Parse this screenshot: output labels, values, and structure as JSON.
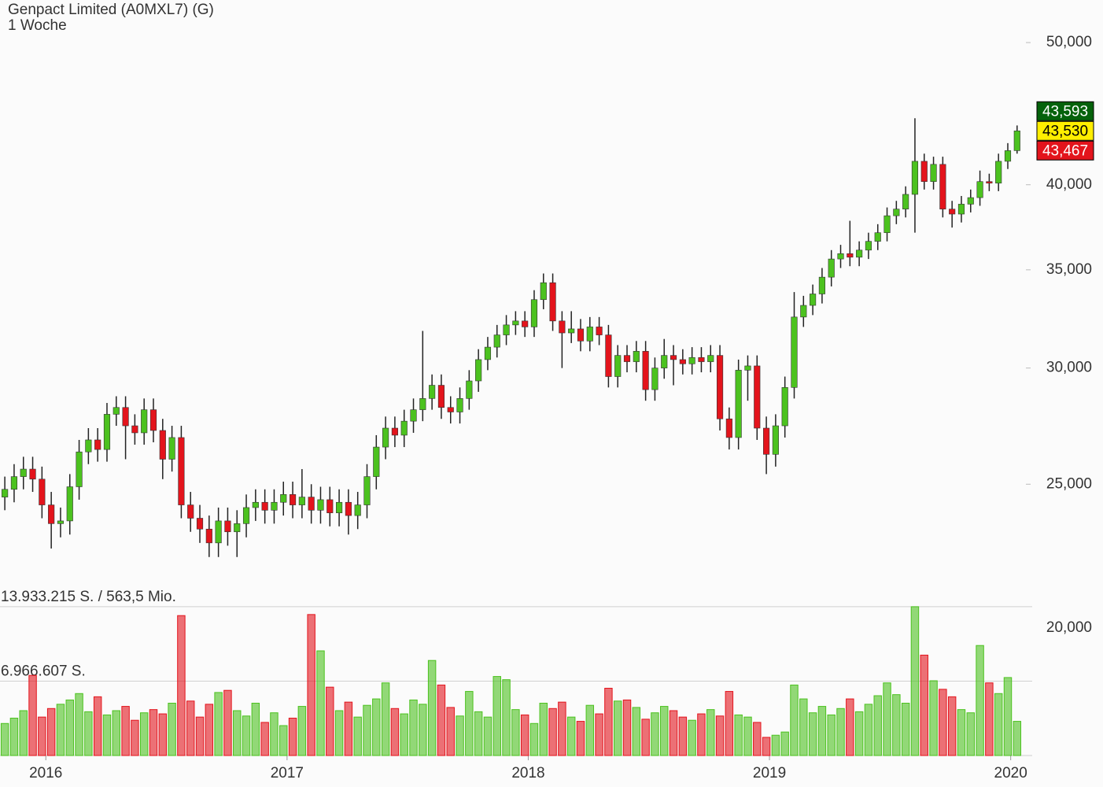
{
  "chart_data": {
    "type": "candlestick",
    "title": "Genpact Limited (A0MXL7) (G)",
    "subtitle": "1 Woche",
    "log_scale": true,
    "up_color": "#4cc21f",
    "down_color": "#e3141c",
    "xlim": [
      2015.81,
      2020.05
    ],
    "xticks": [
      2016,
      2017,
      2018,
      2019,
      2020
    ],
    "ylim": [
      21.43,
      52.15
    ],
    "yticks": [
      {
        "value": 25,
        "label": "25,000"
      },
      {
        "value": 30,
        "label": "30,000"
      },
      {
        "value": 35,
        "label": "35,000"
      },
      {
        "value": 40,
        "label": "40,000"
      },
      {
        "value": 50,
        "label": "50,000"
      }
    ],
    "x": [
      2015.83,
      2015.8685,
      2015.907,
      2015.9455,
      2015.984,
      2016.0225,
      2016.061,
      2016.0995,
      2016.138,
      2016.1765,
      2016.215,
      2016.2535,
      2016.292,
      2016.3305,
      2016.369,
      2016.4075,
      2016.446,
      2016.4845,
      2016.523,
      2016.5615,
      2016.6,
      2016.6385,
      2016.677,
      2016.7155,
      2016.754,
      2016.7925,
      2016.831,
      2016.8695,
      2016.908,
      2016.9465,
      2016.985,
      2017.0235,
      2017.062,
      2017.1005,
      2017.139,
      2017.1775,
      2017.216,
      2017.2545,
      2017.293,
      2017.3315,
      2017.37,
      2017.4085,
      2017.447,
      2017.4855,
      2017.524,
      2017.5625,
      2017.601,
      2017.6395,
      2017.678,
      2017.7165,
      2017.755,
      2017.7935,
      2017.832,
      2017.8705,
      2017.909,
      2017.9475,
      2017.986,
      2018.0245,
      2018.063,
      2018.1015,
      2018.14,
      2018.1785,
      2018.217,
      2018.2555,
      2018.294,
      2018.3325,
      2018.371,
      2018.4095,
      2018.448,
      2018.4865,
      2018.525,
      2018.5635,
      2018.602,
      2018.6405,
      2018.679,
      2018.7175,
      2018.756,
      2018.7945,
      2018.833,
      2018.8715,
      2018.91,
      2018.9485,
      2018.987,
      2019.0255,
      2019.064,
      2019.1025,
      2019.141,
      2019.1795,
      2019.218,
      2019.2565,
      2019.295,
      2019.3335,
      2019.372,
      2019.4105,
      2019.449,
      2019.4875,
      2019.526,
      2019.5645,
      2019.603,
      2019.6415,
      2019.68,
      2019.7185,
      2019.757,
      2019.7955,
      2019.834,
      2019.8725,
      2019.911,
      2019.9495,
      2019.988,
      2020.0265
    ],
    "open": [
      24.5,
      24.8,
      25.3,
      25.6,
      25.2,
      24.2,
      23.5,
      23.6,
      24.9,
      26.3,
      26.8,
      26.4,
      27.9,
      28.2,
      27.4,
      27.1,
      28.1,
      27.2,
      26.0,
      26.9,
      24.2,
      23.7,
      23.3,
      22.8,
      23.6,
      23.2,
      23.5,
      24.1,
      24.3,
      24.0,
      24.3,
      24.6,
      24.2,
      24.5,
      24.0,
      24.4,
      23.9,
      24.3,
      23.8,
      24.2,
      25.3,
      26.5,
      27.3,
      27.0,
      27.6,
      28.1,
      28.6,
      29.2,
      28.2,
      28.0,
      28.6,
      29.4,
      30.4,
      31.0,
      31.6,
      32.1,
      32.3,
      32.0,
      33.4,
      34.3,
      32.3,
      31.7,
      31.9,
      31.3,
      32.0,
      31.6,
      29.6,
      30.6,
      30.3,
      30.8,
      29.0,
      30.0,
      30.6,
      30.4,
      30.2,
      30.5,
      30.3,
      30.6,
      27.7,
      26.9,
      29.9,
      30.1,
      27.3,
      26.2,
      27.4,
      29.1,
      32.5,
      33.1,
      33.7,
      34.6,
      35.6,
      35.9,
      35.7,
      36.1,
      36.6,
      37.1,
      38.1,
      38.5,
      39.4,
      41.5,
      40.2,
      41.3,
      38.5,
      38.2,
      38.8,
      39.2,
      40.2,
      40.1,
      41.5,
      42.2
    ],
    "high": [
      25.3,
      25.8,
      26.1,
      26.1,
      25.7,
      24.7,
      24.1,
      25.4,
      26.8,
      27.3,
      27.3,
      28.4,
      28.7,
      28.7,
      27.9,
      28.6,
      28.6,
      27.7,
      27.4,
      27.4,
      24.7,
      24.2,
      23.8,
      24.1,
      24.1,
      24.0,
      24.6,
      24.8,
      24.8,
      24.8,
      25.1,
      25.1,
      25.6,
      25.0,
      24.9,
      24.9,
      24.8,
      24.8,
      24.7,
      25.8,
      27.0,
      27.8,
      27.8,
      28.1,
      28.6,
      31.8,
      29.7,
      29.7,
      28.7,
      29.1,
      29.9,
      30.9,
      31.5,
      32.1,
      32.6,
      32.8,
      32.8,
      33.9,
      34.8,
      34.8,
      32.8,
      32.8,
      32.4,
      32.5,
      32.5,
      32.1,
      31.1,
      31.1,
      31.3,
      31.3,
      30.5,
      31.4,
      31.1,
      30.9,
      31.0,
      31.0,
      31.1,
      31.1,
      28.2,
      30.4,
      30.6,
      30.6,
      27.8,
      27.9,
      29.6,
      33.8,
      33.6,
      34.2,
      35.1,
      36.1,
      36.4,
      37.8,
      36.6,
      37.1,
      37.6,
      38.6,
      39.0,
      39.9,
      44.4,
      42.0,
      41.8,
      41.8,
      39.0,
      39.3,
      39.7,
      40.9,
      40.7,
      42.0,
      42.7,
      43.9
    ],
    "low": [
      24.0,
      24.3,
      24.8,
      24.7,
      23.7,
      22.6,
      23.0,
      23.1,
      24.4,
      25.8,
      25.9,
      25.9,
      27.4,
      26.0,
      26.6,
      26.6,
      26.7,
      25.2,
      25.5,
      23.7,
      23.2,
      22.8,
      22.3,
      22.3,
      22.7,
      22.3,
      23.0,
      23.6,
      23.5,
      23.5,
      23.8,
      23.7,
      23.7,
      23.5,
      23.5,
      23.4,
      23.4,
      23.1,
      23.3,
      23.7,
      24.8,
      26.0,
      26.5,
      26.5,
      27.1,
      27.6,
      28.1,
      27.7,
      27.5,
      27.5,
      28.1,
      28.9,
      29.9,
      30.5,
      31.1,
      31.6,
      31.5,
      31.5,
      32.9,
      31.8,
      30.0,
      31.2,
      30.8,
      30.8,
      31.1,
      29.1,
      29.1,
      29.8,
      29.8,
      28.5,
      28.5,
      29.5,
      29.2,
      29.7,
      29.7,
      29.8,
      29.8,
      27.2,
      26.4,
      26.4,
      28.5,
      26.8,
      25.4,
      25.7,
      26.9,
      28.6,
      32.0,
      32.6,
      33.2,
      34.1,
      35.1,
      35.2,
      35.2,
      35.6,
      36.1,
      36.6,
      37.6,
      38.0,
      37.1,
      39.7,
      39.7,
      38.0,
      37.4,
      37.7,
      38.3,
      38.7,
      39.6,
      39.6,
      41.0,
      42.0
    ],
    "close": [
      24.8,
      25.3,
      25.6,
      25.2,
      24.2,
      23.5,
      23.6,
      24.9,
      26.3,
      26.8,
      26.4,
      27.9,
      28.2,
      27.4,
      27.1,
      28.1,
      27.2,
      26.0,
      26.9,
      24.2,
      23.7,
      23.3,
      22.8,
      23.6,
      23.2,
      23.5,
      24.1,
      24.3,
      24.0,
      24.3,
      24.6,
      24.2,
      24.5,
      24.0,
      24.4,
      23.9,
      24.3,
      23.8,
      24.2,
      25.3,
      26.5,
      27.3,
      27.0,
      27.6,
      28.1,
      28.6,
      29.2,
      28.2,
      28.0,
      28.6,
      29.4,
      30.4,
      31.0,
      31.6,
      32.1,
      32.3,
      32.0,
      33.4,
      34.3,
      32.3,
      31.7,
      31.9,
      31.3,
      32.0,
      31.6,
      29.6,
      30.6,
      30.3,
      30.8,
      29.0,
      30.0,
      30.6,
      30.4,
      30.2,
      30.5,
      30.3,
      30.6,
      27.7,
      26.9,
      29.9,
      30.1,
      27.3,
      26.2,
      27.4,
      29.1,
      32.5,
      33.1,
      33.7,
      34.6,
      35.6,
      35.9,
      35.7,
      36.1,
      36.6,
      37.1,
      38.1,
      38.5,
      39.4,
      41.5,
      40.2,
      41.3,
      38.5,
      38.2,
      38.8,
      39.2,
      40.2,
      40.1,
      41.5,
      42.2,
      43.53
    ],
    "price_labels": [
      {
        "value": 43.593,
        "label": "43,593",
        "color": "#05620b",
        "text_color": "#ffffff"
      },
      {
        "value": 43.53,
        "label": "43,530",
        "color": "#ffee00",
        "text_color": "#000000"
      },
      {
        "value": 43.467,
        "label": "43,467",
        "color": "#e3141c",
        "text_color": "#ffffff"
      }
    ],
    "volume": {
      "lim": [
        0,
        14000000
      ],
      "axis_label": "20,000",
      "lines": [
        {
          "value": 13933215,
          "label": "13.933.215 S. / 563,5 Mio."
        },
        {
          "value": 6966607,
          "label": "6.966.607 S."
        }
      ],
      "values": [
        3000000,
        3500000,
        4200000,
        7500000,
        3600000,
        4400000,
        4800000,
        5200000,
        5800000,
        4100000,
        5500000,
        3800000,
        4200000,
        4600000,
        3300000,
        4000000,
        4300000,
        3900000,
        4900000,
        13100000,
        5100000,
        3600000,
        4800000,
        5900000,
        6100000,
        4200000,
        3700000,
        4900000,
        3100000,
        4000000,
        2800000,
        3500000,
        4600000,
        13200000,
        9800000,
        6400000,
        4200000,
        5000000,
        3600000,
        4700000,
        5300000,
        6800000,
        4400000,
        3900000,
        5200000,
        4800000,
        8900000,
        6600000,
        4500000,
        3700000,
        6000000,
        4100000,
        3600000,
        7400000,
        7100000,
        4300000,
        3800000,
        3000000,
        4900000,
        4400000,
        5000000,
        3600000,
        3200000,
        4700000,
        3900000,
        6300000,
        5100000,
        5200000,
        4500000,
        3400000,
        4000000,
        4600000,
        4200000,
        3600000,
        3300000,
        3900000,
        4300000,
        3700000,
        6000000,
        3800000,
        3600000,
        3100000,
        1700000,
        1900000,
        2200000,
        6600000,
        5300000,
        4000000,
        4600000,
        3800000,
        4400000,
        5300000,
        4100000,
        4800000,
        5600000,
        6800000,
        5700000,
        4900000,
        13933215,
        9400000,
        7000000,
        6200000,
        5500000,
        4300000,
        4000000,
        10300000,
        6800000,
        5800000,
        7300000,
        3200000
      ]
    }
  }
}
